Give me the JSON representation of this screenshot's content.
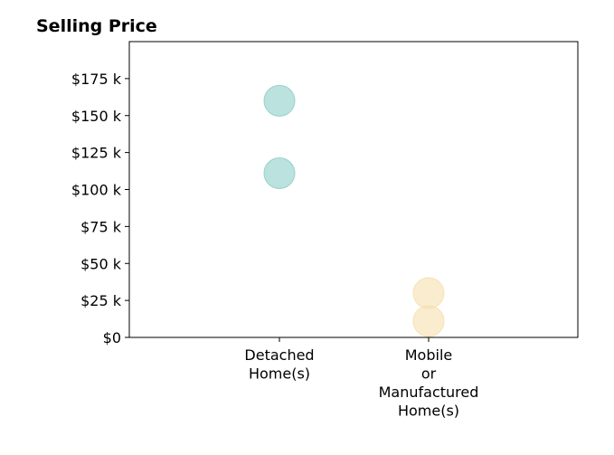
{
  "chart_data": {
    "type": "scatter",
    "title": "Selling Price",
    "xlabel": "",
    "ylabel": "",
    "categories": [
      [
        "Detached",
        "Home(s)"
      ],
      [
        "Mobile",
        "or",
        "Manufactured",
        "Home(s)"
      ]
    ],
    "x_range": [
      -1,
      2
    ],
    "ylim": [
      0,
      200000
    ],
    "y_ticks": [
      {
        "value": 0,
        "label": "$0"
      },
      {
        "value": 25000,
        "label": "$25 k"
      },
      {
        "value": 50000,
        "label": "$50 k"
      },
      {
        "value": 75000,
        "label": "$75 k"
      },
      {
        "value": 100000,
        "label": "$100 k"
      },
      {
        "value": 125000,
        "label": "$125 k"
      },
      {
        "value": 150000,
        "label": "$150 k"
      },
      {
        "value": 175000,
        "label": "$175 k"
      }
    ],
    "grid": false,
    "points": [
      {
        "category": "Detached Home(s)",
        "x": 0,
        "y": 160000,
        "color": "#8ecfc9"
      },
      {
        "category": "Detached Home(s)",
        "x": 0,
        "y": 111000,
        "color": "#8ecfc9"
      },
      {
        "category": "Mobile or Manufactured Home(s)",
        "x": 1,
        "y": 30000,
        "color": "#f6dfae"
      },
      {
        "category": "Mobile or Manufactured Home(s)",
        "x": 1,
        "y": 11000,
        "color": "#f6dfae"
      }
    ]
  }
}
